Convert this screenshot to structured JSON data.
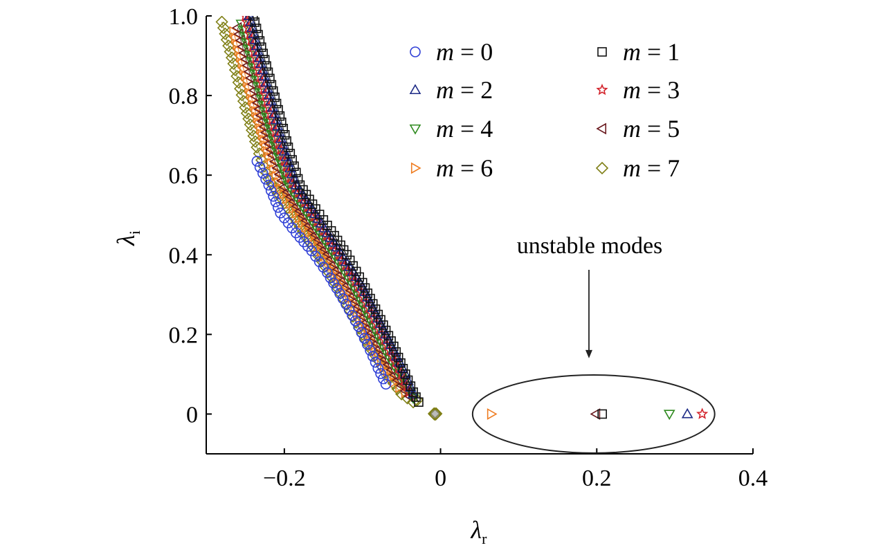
{
  "chart_data": {
    "type": "scatter",
    "xlabel": "λ",
    "xlabel_sub": "r",
    "ylabel": "λ",
    "ylabel_sub": "i",
    "xlim": [
      -0.3,
      0.4
    ],
    "ylim": [
      -0.1,
      1.0
    ],
    "xticks": [
      -0.2,
      0,
      0.2,
      0.4
    ],
    "xtick_labels": [
      "−0.2",
      "0",
      "0.2",
      "0.4"
    ],
    "yticks": [
      0,
      0.2,
      0.4,
      0.6,
      0.8,
      1.0
    ],
    "ytick_labels": [
      "0",
      "0.2",
      "0.4",
      "0.6",
      "0.8",
      "1.0"
    ],
    "legend_placement": "top-right",
    "legend_var": "m",
    "annotation": {
      "text": "unstable modes",
      "arrow_to": [
        0.19,
        0.14
      ]
    },
    "ellipse": {
      "cx": 0.196,
      "cy": 0.0,
      "rx": 0.155,
      "ry": 0.098
    },
    "series": [
      {
        "name": "0",
        "marker": "circle",
        "color": "#2f3fd6",
        "branch": [
          [
            -0.235,
            0.635
          ],
          [
            -0.22,
            0.575
          ],
          [
            -0.205,
            0.505
          ],
          [
            -0.185,
            0.455
          ],
          [
            -0.165,
            0.41
          ],
          [
            -0.145,
            0.355
          ],
          [
            -0.125,
            0.29
          ],
          [
            -0.105,
            0.22
          ],
          [
            -0.09,
            0.16
          ],
          [
            -0.08,
            0.115
          ],
          [
            -0.07,
            0.075
          ]
        ],
        "real": []
      },
      {
        "name": "1",
        "marker": "square",
        "color": "#111111",
        "branch": [
          [
            -0.24,
            1.0
          ],
          [
            -0.225,
            0.89
          ],
          [
            -0.21,
            0.78
          ],
          [
            -0.195,
            0.67
          ],
          [
            -0.18,
            0.575
          ],
          [
            -0.16,
            0.515
          ],
          [
            -0.14,
            0.46
          ],
          [
            -0.12,
            0.4
          ],
          [
            -0.1,
            0.33
          ],
          [
            -0.08,
            0.25
          ],
          [
            -0.06,
            0.17
          ],
          [
            -0.045,
            0.1
          ],
          [
            -0.035,
            0.055
          ],
          [
            -0.028,
            0.03
          ]
        ],
        "real": [
          0.207
        ]
      },
      {
        "name": "2",
        "marker": "triangle-up",
        "color": "#1c2a86",
        "branch": [
          [
            -0.245,
            1.0
          ],
          [
            -0.23,
            0.88
          ],
          [
            -0.215,
            0.77
          ],
          [
            -0.2,
            0.66
          ],
          [
            -0.185,
            0.575
          ],
          [
            -0.165,
            0.515
          ],
          [
            -0.145,
            0.455
          ],
          [
            -0.125,
            0.395
          ],
          [
            -0.1,
            0.32
          ],
          [
            -0.08,
            0.24
          ],
          [
            -0.06,
            0.16
          ],
          [
            -0.045,
            0.1
          ],
          [
            -0.035,
            0.05
          ]
        ],
        "real": [
          0.316
        ]
      },
      {
        "name": "3",
        "marker": "star",
        "color": "#d3242c",
        "branch": [
          [
            -0.25,
            1.0
          ],
          [
            -0.235,
            0.88
          ],
          [
            -0.22,
            0.77
          ],
          [
            -0.205,
            0.665
          ],
          [
            -0.19,
            0.58
          ],
          [
            -0.17,
            0.52
          ],
          [
            -0.15,
            0.46
          ],
          [
            -0.13,
            0.4
          ],
          [
            -0.105,
            0.32
          ],
          [
            -0.085,
            0.24
          ],
          [
            -0.065,
            0.16
          ],
          [
            -0.05,
            0.1
          ],
          [
            -0.04,
            0.055
          ]
        ],
        "real": [
          0.335
        ]
      },
      {
        "name": "4",
        "marker": "triangle-down",
        "color": "#2f8a1f",
        "branch": [
          [
            -0.255,
            0.98
          ],
          [
            -0.24,
            0.87
          ],
          [
            -0.225,
            0.76
          ],
          [
            -0.21,
            0.66
          ],
          [
            -0.195,
            0.575
          ],
          [
            -0.175,
            0.515
          ],
          [
            -0.155,
            0.455
          ],
          [
            -0.135,
            0.395
          ],
          [
            -0.11,
            0.315
          ],
          [
            -0.09,
            0.235
          ],
          [
            -0.07,
            0.155
          ],
          [
            -0.05,
            0.09
          ],
          [
            -0.035,
            0.04
          ]
        ],
        "real": [
          0.293
        ]
      },
      {
        "name": "5",
        "marker": "triangle-left",
        "color": "#6a1a1f",
        "branch": [
          [
            -0.26,
            0.97
          ],
          [
            -0.245,
            0.86
          ],
          [
            -0.23,
            0.75
          ],
          [
            -0.215,
            0.65
          ],
          [
            -0.2,
            0.57
          ],
          [
            -0.18,
            0.51
          ],
          [
            -0.16,
            0.45
          ],
          [
            -0.14,
            0.39
          ],
          [
            -0.115,
            0.31
          ],
          [
            -0.095,
            0.23
          ],
          [
            -0.075,
            0.15
          ],
          [
            -0.055,
            0.085
          ],
          [
            -0.04,
            0.045
          ]
        ],
        "real": [
          0.199
        ]
      },
      {
        "name": "6",
        "marker": "triangle-right",
        "color": "#ef7d22",
        "branch": [
          [
            -0.265,
            0.96
          ],
          [
            -0.25,
            0.85
          ],
          [
            -0.235,
            0.745
          ],
          [
            -0.22,
            0.645
          ],
          [
            -0.205,
            0.565
          ],
          [
            -0.185,
            0.505
          ],
          [
            -0.165,
            0.445
          ],
          [
            -0.145,
            0.385
          ],
          [
            -0.12,
            0.305
          ],
          [
            -0.1,
            0.225
          ],
          [
            -0.08,
            0.145
          ],
          [
            -0.06,
            0.08
          ],
          [
            -0.045,
            0.055
          ]
        ],
        "real": [
          0.065
        ]
      },
      {
        "name": "7",
        "marker": "diamond",
        "color": "#7f7f16",
        "branch": [
          [
            -0.28,
            0.985
          ],
          [
            -0.265,
            0.88
          ],
          [
            -0.25,
            0.77
          ],
          [
            -0.235,
            0.67
          ],
          [
            -0.22,
            0.59
          ],
          [
            -0.2,
            0.53
          ],
          [
            -0.18,
            0.47
          ],
          [
            -0.16,
            0.41
          ],
          [
            -0.14,
            0.345
          ],
          [
            -0.12,
            0.275
          ],
          [
            -0.1,
            0.2
          ],
          [
            -0.08,
            0.135
          ],
          [
            -0.065,
            0.09
          ],
          [
            -0.05,
            0.05
          ],
          [
            -0.035,
            0.03
          ],
          [
            -0.03,
            0.035
          ]
        ],
        "real": []
      }
    ],
    "origin_cluster": {
      "x": -0.007,
      "y": 0.0,
      "color": "#7f7f16"
    }
  }
}
